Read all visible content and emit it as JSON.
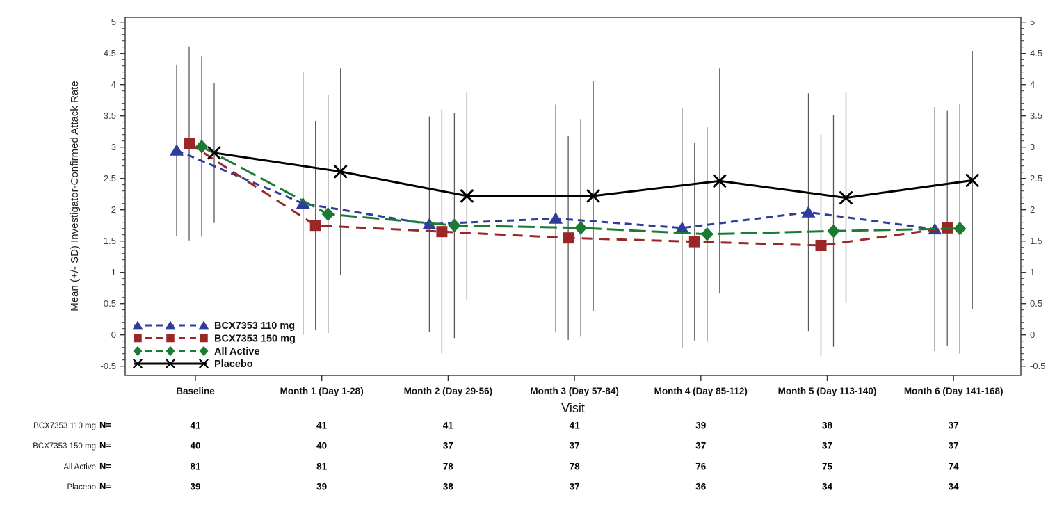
{
  "chart_data": {
    "type": "line",
    "title": "",
    "xlabel": "Visit",
    "ylabel": "Mean (+/- SD) Investigator-Confirmed Attack Rate",
    "ylim": [
      -0.5,
      5
    ],
    "ytick_labels": [
      "5",
      "4.5",
      "4",
      "3.5",
      "3",
      "2.5",
      "2",
      "1.5",
      "1",
      "0.5",
      "0",
      "-0.5"
    ],
    "ytick_values": [
      5,
      4.5,
      4,
      3.5,
      3,
      2.5,
      2,
      1.5,
      1,
      0.5,
      0,
      -0.5
    ],
    "minor_tick_step": 0.1,
    "grid": false,
    "legend_position": "inside-bottom-left",
    "error_bars": "mean +/- SD, no caps",
    "error_bar_color": "#595959",
    "categories": [
      "Baseline",
      "Month 1 (Day 1-28)",
      "Month 2 (Day 29-56)",
      "Month 3 (Day 57-84)",
      "Month 4 (Day 85-112)",
      "Month 5 (Day 113-140)",
      "Month 6 (Day 141-168)"
    ],
    "series": [
      {
        "name": "BCX7353 110 mg",
        "color": "#2e3d9b",
        "marker": "triangle",
        "line": "dashed",
        "dash": "10 7",
        "means": [
          2.95,
          2.1,
          1.77,
          1.86,
          1.71,
          1.96,
          1.69
        ],
        "sds": [
          1.37,
          2.1,
          1.72,
          1.82,
          1.92,
          1.9,
          1.95
        ]
      },
      {
        "name": "BCX7353 150 mg",
        "color": "#9b2628",
        "marker": "square",
        "line": "long-dashed",
        "dash": "15 10",
        "means": [
          3.06,
          1.75,
          1.65,
          1.55,
          1.49,
          1.43,
          1.71
        ],
        "sds": [
          1.55,
          1.67,
          1.95,
          1.63,
          1.58,
          1.77,
          1.88
        ]
      },
      {
        "name": "All Active",
        "color": "#1b7b33",
        "marker": "diamond",
        "line": "long-dash",
        "dash": "24 8",
        "means": [
          3.01,
          1.93,
          1.75,
          1.71,
          1.61,
          1.66,
          1.7
        ],
        "sds": [
          1.44,
          1.9,
          1.8,
          1.74,
          1.72,
          1.85,
          2.0
        ]
      },
      {
        "name": "Placebo",
        "color": "#000000",
        "marker": "x",
        "line": "solid",
        "dash": "",
        "means": [
          2.91,
          2.61,
          2.22,
          2.22,
          2.46,
          2.19,
          2.47
        ],
        "sds": [
          1.12,
          1.65,
          1.66,
          1.84,
          1.8,
          1.68,
          2.06
        ]
      }
    ]
  },
  "n_table": {
    "n_label": "N=",
    "rows": [
      {
        "label": "BCX7353 110 mg",
        "values": [
          "41",
          "41",
          "41",
          "41",
          "39",
          "38",
          "37"
        ]
      },
      {
        "label": "BCX7353 150 mg",
        "values": [
          "40",
          "40",
          "37",
          "37",
          "37",
          "37",
          "37"
        ]
      },
      {
        "label": "All Active",
        "values": [
          "81",
          "81",
          "78",
          "78",
          "76",
          "75",
          "74"
        ]
      },
      {
        "label": "Placebo",
        "values": [
          "39",
          "39",
          "38",
          "37",
          "36",
          "34",
          "34"
        ]
      }
    ]
  }
}
